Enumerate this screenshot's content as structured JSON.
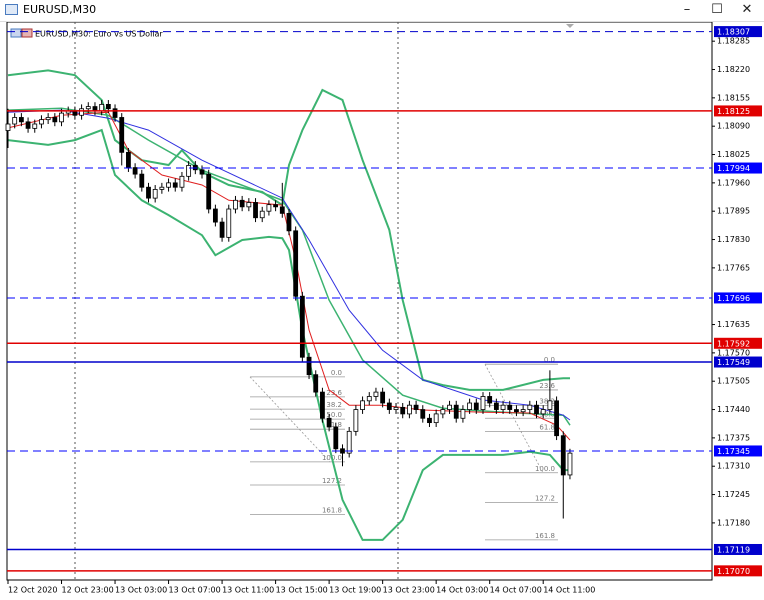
{
  "window": {
    "title": "EURUSD,M30"
  },
  "chart_data": {
    "type": "candlestick",
    "title": "EURUSD,M30:  Euro vs US Dollar",
    "ylim": [
      1.17049,
      1.18329
    ],
    "yticks": [
      1.18285,
      {
        "value": 1.1822,
        "label": "1.18220"
      },
      1.18155,
      {
        "value": 1.1809,
        "label": "1.18090"
      },
      1.18025,
      {
        "value": 1.1796,
        "label": "1.17960"
      },
      1.17895,
      {
        "value": 1.1783,
        "label": "1.17830"
      },
      1.17765,
      1.17635,
      {
        "value": 1.1757,
        "label": "1.17570"
      },
      1.17505,
      {
        "value": 1.1744,
        "label": "1.17440"
      },
      1.17375,
      {
        "value": 1.1731,
        "label": "1.17310"
      },
      1.17245,
      {
        "value": 1.1718,
        "label": "1.17180"
      }
    ],
    "xticks": [
      {
        "value": 0,
        "label": "12 Oct 2020"
      },
      {
        "value": 8,
        "label": "12 Oct 23:00"
      },
      {
        "value": 16,
        "label": "13 Oct 03:00"
      },
      {
        "value": 24,
        "label": "13 Oct 07:00"
      },
      {
        "value": 32,
        "label": "13 Oct 11:00"
      },
      {
        "value": 40,
        "label": "13 Oct 15:00"
      },
      {
        "value": 48,
        "label": "13 Oct 19:00"
      },
      {
        "value": 56,
        "label": "13 Oct 23:00"
      },
      {
        "value": 64,
        "label": "14 Oct 03:00"
      },
      {
        "value": 72,
        "label": "14 Oct 07:00"
      },
      {
        "value": 80,
        "label": "14 Oct 11:00"
      }
    ],
    "open": [
      1.1808,
      1.18095,
      1.1811,
      1.181,
      1.18085,
      1.18095,
      1.18105,
      1.1811,
      1.181,
      1.1812,
      1.18125,
      1.18115,
      1.1813,
      1.18135,
      1.18125,
      1.1814,
      1.1813,
      1.1811,
      1.1803,
      1.17995,
      1.1798,
      1.1795,
      1.17925,
      1.17945,
      1.1795,
      1.1796,
      1.1795,
      1.17975,
      1.18,
      1.1799,
      1.1798,
      1.179,
      1.1787,
      1.17835,
      1.179,
      1.1792,
      1.17905,
      1.17915,
      1.1788,
      1.17895,
      1.1791,
      1.17905,
      1.1789,
      1.1785,
      1.177,
      1.1756,
      1.1752,
      1.1748,
      1.1742,
      1.174,
      1.1735,
      1.1734,
      1.1739,
      1.1744,
      1.1746,
      1.1747,
      1.1748,
      1.17455,
      1.1744,
      1.17445,
      1.1743,
      1.1745,
      1.1744,
      1.1742,
      1.1741,
      1.1743,
      1.1744,
      1.1745,
      1.1742,
      1.1744,
      1.17455,
      1.1744,
      1.1747,
      1.17455,
      1.1744,
      1.1745,
      1.1744,
      1.17435,
      1.1744,
      1.1745,
      1.1743,
      1.1744,
      1.1746,
      1.1738,
      1.1729
    ],
    "high": [
      1.1813,
      1.1812,
      1.1812,
      1.1811,
      1.18105,
      1.18115,
      1.1812,
      1.1812,
      1.1813,
      1.18135,
      1.18135,
      1.1814,
      1.18145,
      1.18145,
      1.1815,
      1.1815,
      1.1814,
      1.1812,
      1.1804,
      1.18005,
      1.1799,
      1.1796,
      1.17955,
      1.1796,
      1.1797,
      1.1797,
      1.17985,
      1.1801,
      1.1801,
      1.18,
      1.1799,
      1.1791,
      1.1788,
      1.1791,
      1.1793,
      1.1793,
      1.17925,
      1.17925,
      1.17905,
      1.1792,
      1.1792,
      1.1796,
      1.179,
      1.1786,
      1.1771,
      1.1757,
      1.1753,
      1.1749,
      1.1743,
      1.1741,
      1.1736,
      1.174,
      1.1745,
      1.1747,
      1.1748,
      1.1749,
      1.1749,
      1.17465,
      1.17455,
      1.17455,
      1.1746,
      1.1746,
      1.1745,
      1.1743,
      1.1744,
      1.1745,
      1.1746,
      1.1746,
      1.1745,
      1.17465,
      1.17465,
      1.1748,
      1.1748,
      1.17465,
      1.1746,
      1.1746,
      1.1745,
      1.1745,
      1.1746,
      1.1746,
      1.1745,
      1.1753,
      1.1747,
      1.1739,
      1.1735
    ],
    "low": [
      1.1804,
      1.18085,
      1.1809,
      1.18075,
      1.18075,
      1.18085,
      1.18095,
      1.1809,
      1.1809,
      1.1811,
      1.18105,
      1.18105,
      1.1812,
      1.18115,
      1.18115,
      1.1812,
      1.181,
      1.18,
      1.17985,
      1.1797,
      1.1794,
      1.17915,
      1.17915,
      1.17935,
      1.1794,
      1.1794,
      1.1794,
      1.17965,
      1.1798,
      1.1797,
      1.1789,
      1.1786,
      1.17825,
      1.17825,
      1.1789,
      1.17895,
      1.17895,
      1.1787,
      1.1787,
      1.17885,
      1.17895,
      1.1788,
      1.1784,
      1.1769,
      1.1755,
      1.1751,
      1.1747,
      1.1741,
      1.1739,
      1.1734,
      1.1731,
      1.1733,
      1.1738,
      1.1743,
      1.1745,
      1.1746,
      1.17445,
      1.1743,
      1.1743,
      1.1742,
      1.1742,
      1.1743,
      1.1741,
      1.174,
      1.174,
      1.1742,
      1.1743,
      1.1741,
      1.1741,
      1.1743,
      1.1743,
      1.1743,
      1.17445,
      1.1743,
      1.1743,
      1.1743,
      1.17425,
      1.17425,
      1.1743,
      1.1742,
      1.1742,
      1.1743,
      1.1737,
      1.1719,
      1.1728
    ],
    "close": [
      1.18095,
      1.1811,
      1.181,
      1.18085,
      1.18095,
      1.18105,
      1.1811,
      1.181,
      1.1812,
      1.18125,
      1.18115,
      1.1813,
      1.18135,
      1.18125,
      1.1814,
      1.1813,
      1.1811,
      1.1803,
      1.17995,
      1.1798,
      1.1795,
      1.17925,
      1.17945,
      1.1795,
      1.1796,
      1.1795,
      1.17975,
      1.18,
      1.1799,
      1.1798,
      1.179,
      1.1787,
      1.17835,
      1.179,
      1.1792,
      1.17905,
      1.17915,
      1.1788,
      1.17895,
      1.1791,
      1.17905,
      1.1789,
      1.1785,
      1.177,
      1.1756,
      1.1752,
      1.1748,
      1.1742,
      1.174,
      1.1735,
      1.1734,
      1.1739,
      1.1744,
      1.1746,
      1.1747,
      1.1748,
      1.17455,
      1.1744,
      1.17445,
      1.1743,
      1.1745,
      1.1744,
      1.1742,
      1.1741,
      1.1743,
      1.1744,
      1.1745,
      1.1742,
      1.1744,
      1.17455,
      1.1744,
      1.1747,
      1.17455,
      1.1744,
      1.1745,
      1.1744,
      1.17435,
      1.1744,
      1.1745,
      1.1743,
      1.1744,
      1.1746,
      1.1738,
      1.1729,
      1.1734
    ],
    "indicators": [
      {
        "color": "#3cb371",
        "width": 2,
        "index": [
          0,
          6,
          10,
          14,
          16,
          20,
          24,
          26,
          29,
          33,
          38,
          41,
          42,
          44,
          47,
          50,
          53,
          57,
          59,
          62,
          65,
          69,
          74,
          80,
          83,
          84
        ],
        "values": [
          1.18207,
          1.18218,
          1.18207,
          1.1815,
          1.18058,
          1.18012,
          1.18001,
          1.18035,
          1.17985,
          1.17955,
          1.17939,
          1.17909,
          1.18001,
          1.18081,
          1.18173,
          1.1815,
          1.18012,
          1.17852,
          1.17691,
          1.17508,
          1.17496,
          1.17485,
          1.17485,
          1.17508,
          1.17512,
          1.17512
        ]
      },
      {
        "color": "#3cb371",
        "width": 2,
        "index": [
          0,
          6,
          10,
          14,
          16,
          20,
          24,
          29,
          31,
          35,
          39,
          41,
          42,
          44,
          47,
          50,
          53,
          56,
          59,
          62,
          65,
          69,
          74,
          78,
          81,
          83,
          84
        ],
        "values": [
          1.18058,
          1.18047,
          1.18058,
          1.18081,
          1.17978,
          1.1792,
          1.17886,
          1.1784,
          1.17794,
          1.17829,
          1.17836,
          1.17833,
          1.17806,
          1.17622,
          1.17416,
          1.17233,
          1.17141,
          1.17141,
          1.17187,
          1.17301,
          1.17336,
          1.17336,
          1.17336,
          1.17343,
          1.17336,
          1.17301,
          1.17301
        ]
      },
      {
        "color": "#3cb371",
        "width": 1.5,
        "index": [
          0,
          8,
          15,
          21,
          29,
          41,
          44,
          48,
          53,
          59,
          65,
          74,
          83,
          84
        ],
        "values": [
          1.18127,
          1.18131,
          1.18115,
          1.18058,
          1.17989,
          1.1792,
          1.17852,
          1.17691,
          1.17554,
          1.17473,
          1.17443,
          1.17434,
          1.17427,
          1.17404
        ]
      },
      {
        "color": "#3030e0",
        "width": 1,
        "index": [
          0,
          8,
          15,
          21,
          29,
          41,
          45,
          51,
          56,
          62,
          71,
          78,
          83,
          84
        ],
        "values": [
          1.18122,
          1.18127,
          1.18108,
          1.18081,
          1.18012,
          1.17925,
          1.17829,
          1.17668,
          1.17576,
          1.17508,
          1.17462,
          1.1745,
          1.17427,
          1.17416
        ]
      },
      {
        "color": "#e02020",
        "width": 1,
        "index": [
          0,
          8,
          15,
          18,
          23,
          29,
          33,
          41,
          43,
          45,
          48,
          51,
          56,
          62,
          71,
          78,
          82,
          84
        ],
        "values": [
          1.18086,
          1.18115,
          1.18122,
          1.18035,
          1.17978,
          1.17955,
          1.1792,
          1.17909,
          1.17783,
          1.17622,
          1.17485,
          1.1745,
          1.1745,
          1.17439,
          1.17434,
          1.17432,
          1.17404,
          1.1737
        ]
      }
    ],
    "fibonacci": [
      {
        "levels": [
          "0.0",
          "23.6",
          "38.2",
          "50.0",
          "61.8",
          "100.0",
          "127.2",
          "161.8"
        ],
        "prices": [
          1.17515,
          1.17469,
          1.17441,
          1.17418,
          1.17395,
          1.1732,
          1.17267,
          1.17199
        ]
      },
      {
        "levels": [
          "0.0",
          "23.6",
          "38.2",
          "50.0",
          "61.8",
          "100.0",
          "127.2",
          "161.8"
        ],
        "prices": [
          1.17544,
          1.17485,
          1.17449,
          1.1742,
          1.1739,
          1.17295,
          1.17227,
          1.17141
        ]
      }
    ],
    "levels": [
      {
        "value": 1.18307,
        "color": "#0000cc",
        "style": "dashed"
      },
      {
        "value": 1.18125,
        "color": "#e00000",
        "style": "solid"
      },
      {
        "value": 1.17994,
        "color": "#0000ff",
        "style": "dashed"
      },
      {
        "value": 1.17696,
        "color": "#0000ff",
        "style": "dashed"
      },
      {
        "value": 1.17592,
        "color": "#e00000",
        "style": "solid"
      },
      {
        "value": 1.17549,
        "color": "#0000cc",
        "style": "solid"
      },
      {
        "value": 1.17345,
        "color": "#0000ff",
        "style": "dashed"
      },
      {
        "value": 1.17119,
        "color": "#0000cc",
        "style": "solid"
      },
      {
        "value": {
          "value": 1.1707,
          "label": "1.17070"
        },
        "color": "#e00000",
        "style": "solid"
      }
    ]
  }
}
